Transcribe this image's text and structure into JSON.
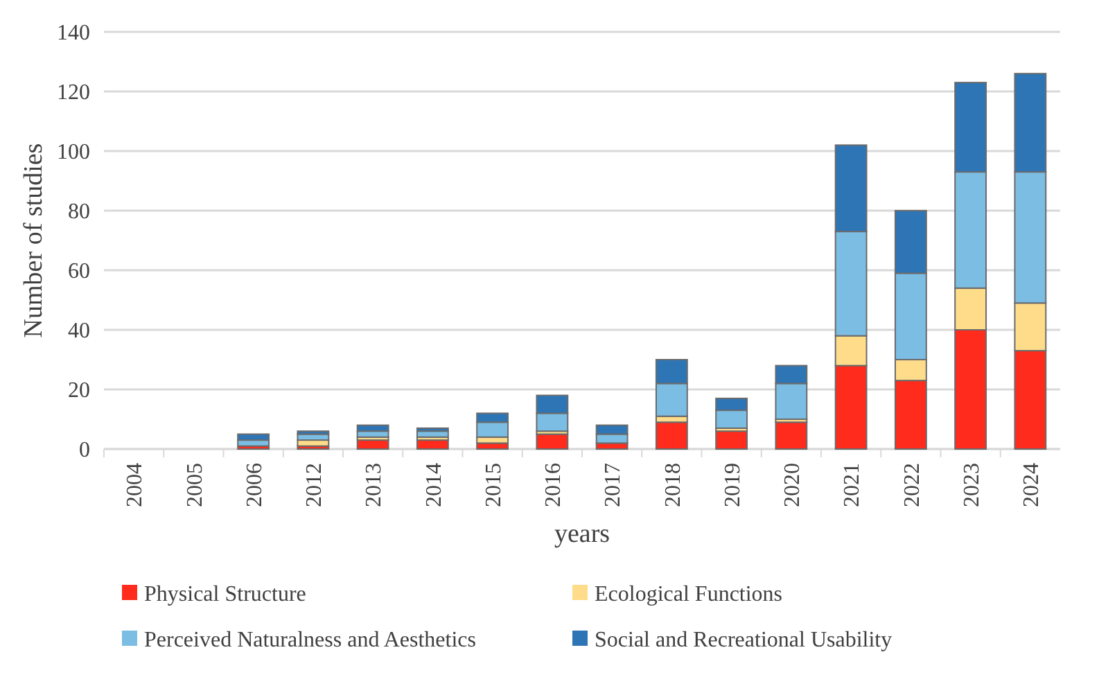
{
  "chart_data": {
    "type": "bar",
    "stacked": true,
    "xlabel": "years",
    "ylabel": "Number of studies",
    "categories": [
      "2004",
      "2005",
      "2006",
      "2012",
      "2013",
      "2014",
      "2015",
      "2016",
      "2017",
      "2018",
      "2019",
      "2020",
      "2021",
      "2022",
      "2023",
      "2024"
    ],
    "series": [
      {
        "name": "Physical Structure",
        "color": "#ff2b1c",
        "values": [
          0,
          0,
          1,
          1,
          3,
          3,
          2,
          5,
          2,
          9,
          6,
          9,
          28,
          23,
          40,
          33
        ]
      },
      {
        "name": "Ecological Functions",
        "color": "#ffdc8a",
        "values": [
          0,
          0,
          0,
          2,
          1,
          1,
          2,
          1,
          0,
          2,
          1,
          1,
          10,
          7,
          14,
          16
        ]
      },
      {
        "name": "Perceived Naturalness and Aesthetics",
        "color": "#7bbde3",
        "values": [
          0,
          0,
          2,
          2,
          2,
          2,
          5,
          6,
          3,
          11,
          6,
          12,
          35,
          29,
          39,
          44
        ]
      },
      {
        "name": "Social and Recreational Usability",
        "color": "#2e75b6",
        "values": [
          0,
          0,
          2,
          1,
          2,
          1,
          3,
          6,
          3,
          8,
          4,
          6,
          29,
          21,
          30,
          33
        ]
      }
    ],
    "ylim": [
      0,
      140
    ],
    "yticks": [
      0,
      20,
      40,
      60,
      80,
      100,
      120,
      140
    ],
    "grid": "y",
    "legend": "bottom"
  }
}
